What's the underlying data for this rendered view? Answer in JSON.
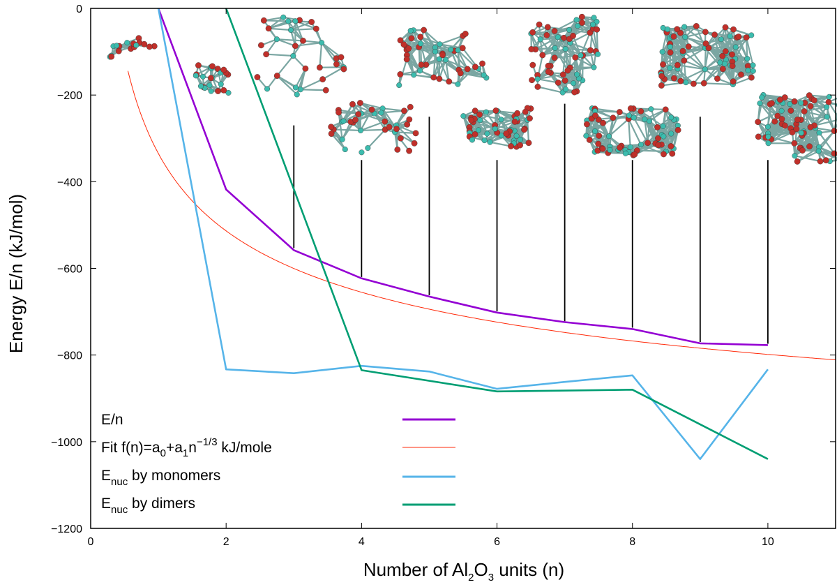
{
  "chart_data": {
    "type": "line",
    "xlabel": {
      "pre": "Number of Al",
      "sub1": "2",
      "mid": "O",
      "sub2": "3",
      "post": " units (n)"
    },
    "ylabel": "Energy E/n (kJ/mol)",
    "xlim": [
      0,
      11
    ],
    "ylim": [
      -1200,
      0
    ],
    "xticks": [
      0,
      2,
      4,
      6,
      8,
      10
    ],
    "yticks": [
      0,
      -200,
      -400,
      -600,
      -800,
      -1000,
      -1200
    ],
    "grid": false,
    "legend_position": "bottom-left",
    "series": [
      {
        "key": "en",
        "legend": {
          "pre": "E/n",
          "sub": "",
          "post": ""
        },
        "color": "#9400d3",
        "x": [
          1,
          2,
          3,
          4,
          5,
          6,
          7,
          8,
          9,
          10
        ],
        "y": [
          0,
          -418,
          -558,
          -623,
          -665,
          -702,
          -724,
          -740,
          -773,
          -777
        ]
      },
      {
        "key": "fit",
        "legend": {
          "pre": "Fit f(n)=a",
          "sub": "0",
          "mid": "+a",
          "sub2": "1",
          "mid2": "n",
          "sup": "−1/3",
          "post": " kJ/mole"
        },
        "color": "#ff2a0a",
        "function": {
          "a0": -1200,
          "a1": 865,
          "x_from": 0.55,
          "x_to": 11
        }
      },
      {
        "key": "mono",
        "legend": {
          "pre": "E",
          "sub": "nuc",
          "post": " by monomers"
        },
        "color": "#56b4e9",
        "x": [
          1,
          2,
          3,
          4,
          5,
          6,
          7,
          8,
          9,
          10
        ],
        "y": [
          0,
          -833,
          -842,
          -825,
          -838,
          -878,
          -862,
          -847,
          -1040,
          -833
        ]
      },
      {
        "key": "dimer",
        "legend": {
          "pre": "E",
          "sub": "nuc",
          "post": " by dimers"
        },
        "color": "#009e73",
        "x": [
          2,
          4,
          6,
          8,
          10
        ],
        "y": [
          0,
          -835,
          -884,
          -880,
          -1040
        ]
      }
    ],
    "structure_leaders": [
      {
        "x": 3,
        "y_from": -553,
        "y_to": -270
      },
      {
        "x": 4,
        "y_from": -620,
        "y_to": -350
      },
      {
        "x": 5,
        "y_from": -662,
        "y_to": -250
      },
      {
        "x": 6,
        "y_from": -699,
        "y_to": -350
      },
      {
        "x": 7,
        "y_from": -722,
        "y_to": -220
      },
      {
        "x": 8,
        "y_from": -737,
        "y_to": -350
      },
      {
        "x": 9,
        "y_from": -770,
        "y_to": -250
      },
      {
        "x": 10,
        "y_from": -774,
        "y_to": -350
      }
    ],
    "structure_images": [
      {
        "n": 1,
        "cx": 0.6,
        "cy": -90,
        "w": 0.7,
        "h": 50
      },
      {
        "n": 2,
        "cx": 1.8,
        "cy": -165,
        "w": 0.5,
        "h": 70
      },
      {
        "n": 3,
        "cx": 3.1,
        "cy": -110,
        "w": 1.3,
        "h": 190
      },
      {
        "n": 4,
        "cx": 4.2,
        "cy": -275,
        "w": 1.3,
        "h": 120
      },
      {
        "n": 5,
        "cx": 5.2,
        "cy": -115,
        "w": 1.3,
        "h": 130
      },
      {
        "n": 6,
        "cx": 6.0,
        "cy": -275,
        "w": 1.0,
        "h": 90
      },
      {
        "n": 7,
        "cx": 7.0,
        "cy": -110,
        "w": 1.0,
        "h": 190
      },
      {
        "n": 8,
        "cx": 8.0,
        "cy": -285,
        "w": 1.4,
        "h": 110
      },
      {
        "n": 9,
        "cx": 9.1,
        "cy": -110,
        "w": 1.4,
        "h": 140
      },
      {
        "n": 10,
        "cx": 10.5,
        "cy": -275,
        "w": 1.3,
        "h": 160
      }
    ],
    "atom_colors": {
      "al": "#3cbcae",
      "o": "#c0302a",
      "bond": "#7aa6a2"
    }
  }
}
